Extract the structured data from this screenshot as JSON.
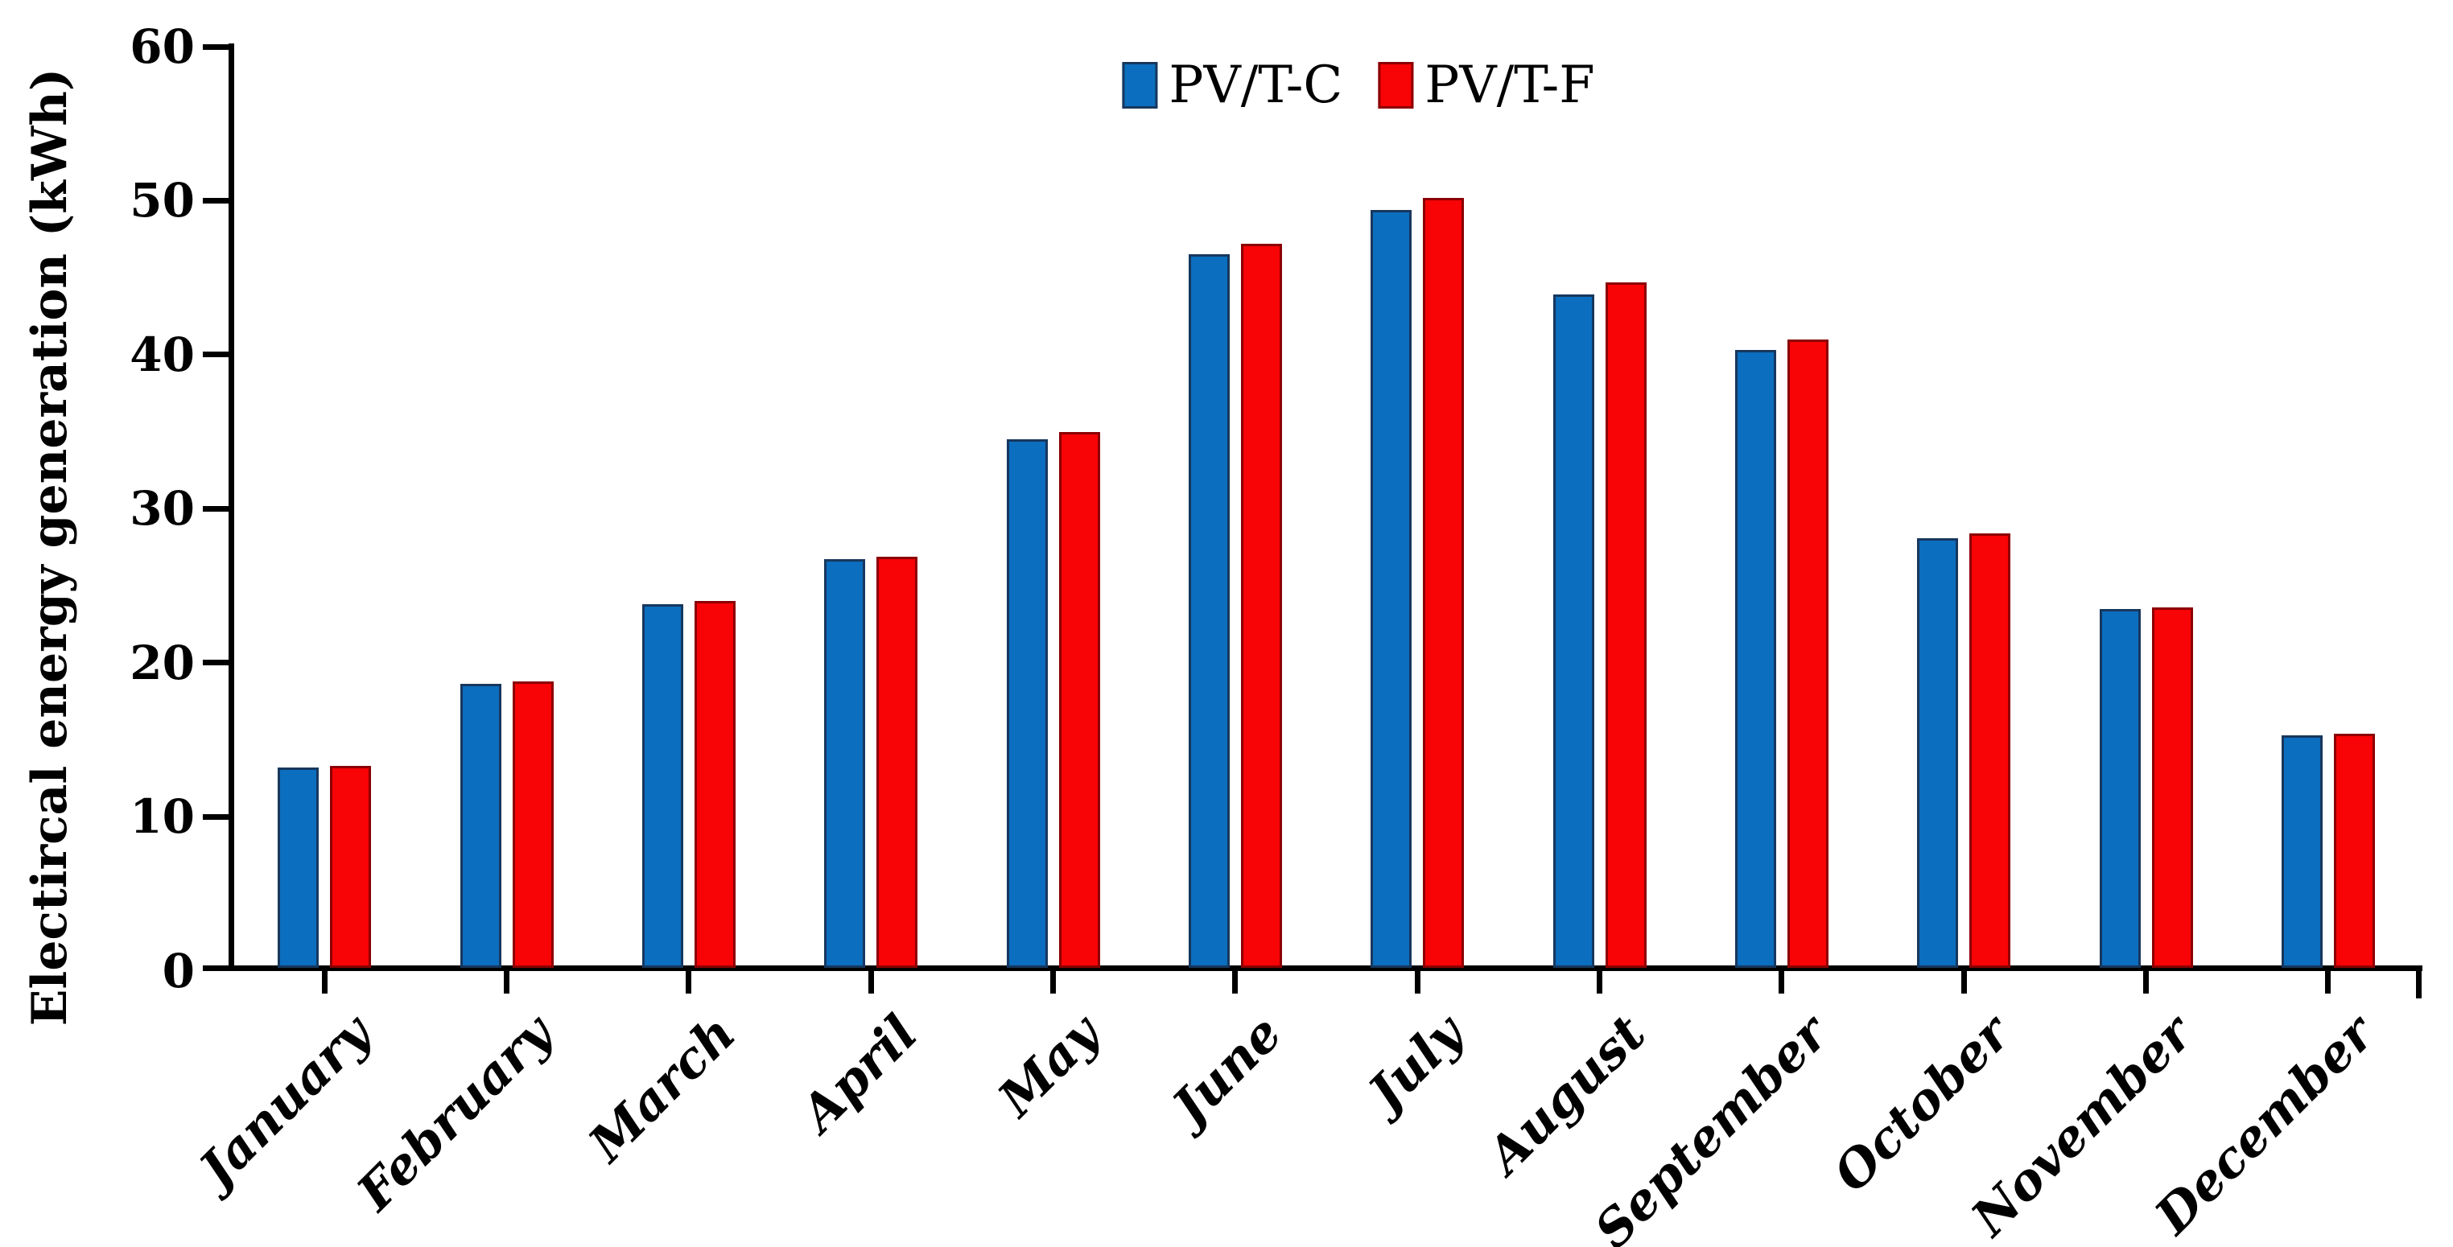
{
  "chart_data": {
    "type": "bar",
    "title": "",
    "ylabel": "Electircal energy generation (kWh)",
    "xlabel": "",
    "categories": [
      "January",
      "February",
      "March",
      "April",
      "May",
      "June",
      "July",
      "August",
      "September",
      "October",
      "November",
      "December"
    ],
    "series": [
      {
        "name": "PV/T-C",
        "color": "#0C6EBE",
        "border_color": "#17375E",
        "values": [
          13.2,
          18.6,
          23.8,
          26.7,
          34.5,
          46.5,
          49.4,
          43.9,
          40.3,
          28.1,
          23.5,
          15.3
        ]
      },
      {
        "name": "PV/T-F",
        "color": "#F80306",
        "border_color": "#8C0002",
        "values": [
          13.3,
          18.8,
          24.0,
          26.9,
          35.0,
          47.2,
          50.2,
          44.7,
          41.0,
          28.4,
          23.6,
          15.4
        ]
      }
    ],
    "ylim": [
      0,
      60
    ],
    "yticks": [
      0,
      10,
      20,
      30,
      40,
      50,
      60
    ],
    "grid": false,
    "legend_position": "top-center",
    "axis_color": "#000000",
    "text_color": "#000000",
    "background": "#FFFFFF"
  }
}
